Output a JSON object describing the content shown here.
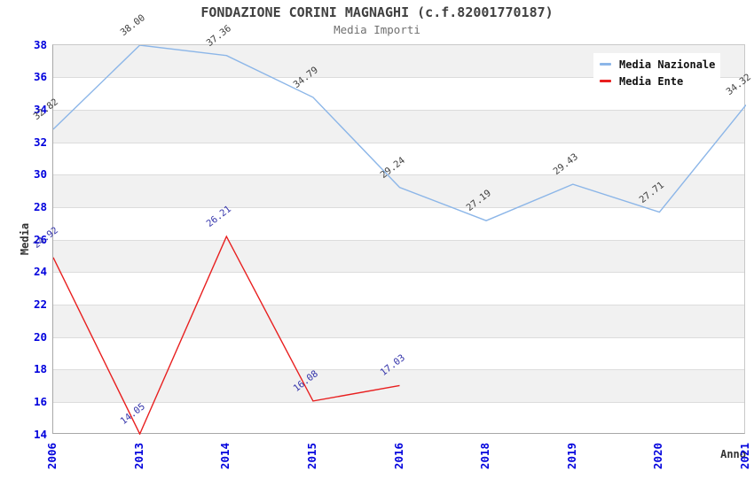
{
  "chart_data": {
    "type": "line",
    "title": "FONDAZIONE CORINI MAGNAGHI (c.f.82001770187)",
    "subtitle": "Media Importi",
    "xlabel": "Anno",
    "ylabel": "Media",
    "categories": [
      "2006",
      "2013",
      "2014",
      "2015",
      "2016",
      "2018",
      "2019",
      "2020",
      "2021"
    ],
    "series": [
      {
        "name": "Media Nazionale",
        "color": "#8cb6e8",
        "label_color": "#404040",
        "values": [
          32.82,
          38.0,
          37.36,
          34.79,
          29.24,
          27.19,
          29.43,
          27.71,
          34.32
        ]
      },
      {
        "name": "Media Ente",
        "color": "#e81f1f",
        "label_color": "#3333aa",
        "values": [
          24.92,
          14.05,
          26.21,
          16.08,
          17.03,
          null,
          null,
          null,
          null
        ]
      }
    ],
    "ylim": [
      14,
      38
    ],
    "ytick_step": 2,
    "value_label_decimals": 2,
    "grid": "horizontal-bands",
    "legend_position": "top-right"
  },
  "colors": {
    "title": "#404040",
    "subtitle": "#707070",
    "axis_name": "#333333",
    "tick_label": "#0000dd",
    "band": "#f1f1f1",
    "gridline": "#dcdcdc",
    "border": "#c8c8c8",
    "legend_bg": "#ffffff",
    "legend_text": "#111111"
  }
}
